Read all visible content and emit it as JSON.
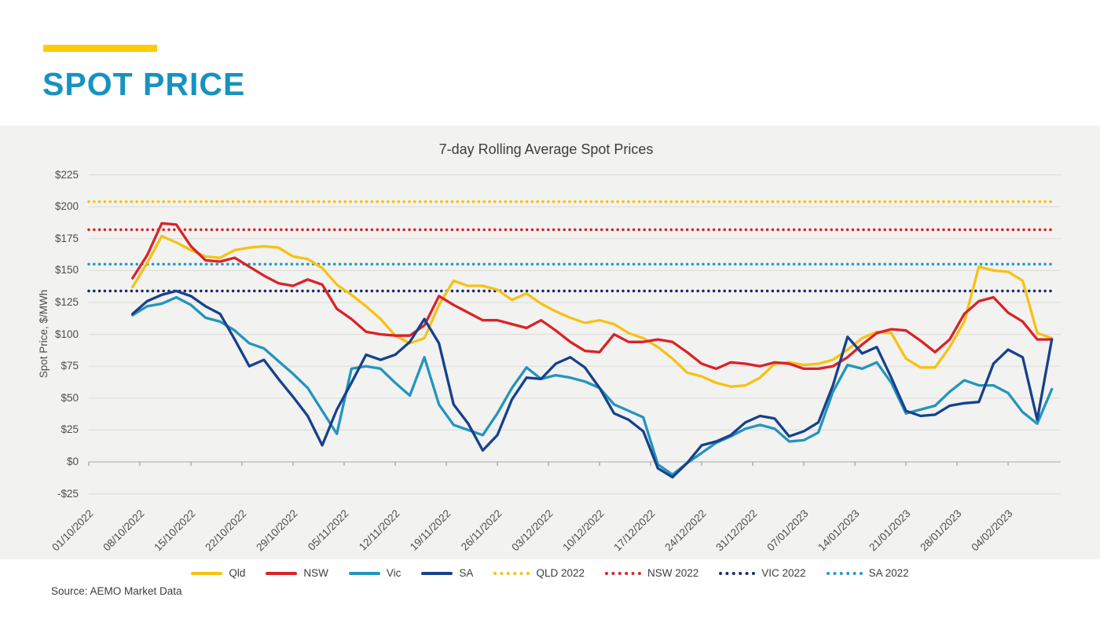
{
  "header": {
    "title": "SPOT PRICE"
  },
  "source": {
    "text": "Source: AEMO Market Data"
  },
  "colors": {
    "accent_bar": "#FFCB05",
    "header_title": "#1792C1",
    "plot_bg": "#F2F2F1",
    "grid": "#DDDDDC",
    "axis": "#BDBDBD",
    "tick": "#9E9E9E",
    "label_text": "#4D4D4D",
    "qld": "#F6C213",
    "nsw": "#D92329",
    "vic": "#2395BC",
    "sa": "#16418C",
    "qld_2022": "#F6C213",
    "nsw_2022": "#D92329",
    "vic_2022": "#1A2B6E",
    "sa_2022": "#1F9CCB"
  },
  "chart_data": {
    "type": "line",
    "title": "7-day Rolling Average Spot Prices",
    "xlabel": "",
    "ylabel": "Spot Price, $/MWh",
    "ylim": [
      -25,
      225
    ],
    "grid": "horizontal",
    "legend_position": "bottom",
    "y_tick_values": [
      225,
      200,
      175,
      150,
      125,
      100,
      75,
      50,
      25,
      0,
      -25
    ],
    "y_tick_labels": [
      "$225",
      "$200",
      "$175",
      "$150",
      "$125",
      "$100",
      "$75",
      "$50",
      "$25",
      "$0",
      "-$25"
    ],
    "x_tick_labels": [
      "01/10/2022",
      "08/10/2022",
      "15/10/2022",
      "22/10/2022",
      "29/10/2022",
      "05/11/2022",
      "12/11/2022",
      "19/11/2022",
      "26/11/2022",
      "03/12/2022",
      "10/12/2022",
      "17/12/2022",
      "24/12/2022",
      "31/12/2022",
      "07/01/2023",
      "14/01/2023",
      "21/01/2023",
      "28/01/2023",
      "04/02/2023"
    ],
    "x_tick_interval_days": 7,
    "series_start_day": 6,
    "series_step_days": 2,
    "series": [
      {
        "name": "Qld",
        "color_key": "qld",
        "values": [
          137,
          156,
          177,
          172,
          166,
          161,
          160,
          166,
          168,
          169,
          168,
          161,
          159,
          152,
          139,
          131,
          122,
          112,
          99,
          93,
          97,
          123,
          142,
          138,
          138,
          135,
          127,
          132,
          124,
          118,
          113,
          109,
          111,
          108,
          101,
          97,
          90,
          81,
          70,
          67,
          62,
          59,
          60,
          66,
          77,
          78,
          76,
          77,
          80,
          88,
          97,
          102,
          101,
          81,
          74,
          74,
          90,
          110,
          153,
          150,
          149,
          142,
          101,
          97
        ]
      },
      {
        "name": "NSW",
        "color_key": "nsw",
        "values": [
          144,
          162,
          187,
          186,
          169,
          158,
          157,
          160,
          153,
          146,
          140,
          138,
          143,
          139,
          120,
          112,
          102,
          100,
          99,
          99,
          107,
          130,
          123,
          117,
          111,
          111,
          108,
          105,
          111,
          103,
          94,
          87,
          86,
          100,
          94,
          94,
          96,
          94,
          86,
          77,
          73,
          78,
          77,
          75,
          78,
          77,
          73,
          73,
          75,
          82,
          92,
          101,
          104,
          103,
          95,
          86,
          96,
          116,
          126,
          129,
          117,
          110,
          96,
          96
        ]
      },
      {
        "name": "Vic",
        "color_key": "vic",
        "values": [
          115,
          122,
          124,
          129,
          123,
          113,
          110,
          103,
          93,
          89,
          79,
          69,
          58,
          40,
          22,
          73,
          75,
          73,
          62,
          52,
          82,
          45,
          29,
          25,
          21,
          38,
          58,
          74,
          65,
          68,
          66,
          63,
          58,
          45,
          40,
          35,
          -2,
          -10,
          -1,
          7,
          15,
          20,
          26,
          29,
          26,
          16,
          17,
          23,
          55,
          76,
          73,
          78,
          62,
          38,
          41,
          44,
          55,
          64,
          60,
          60,
          54,
          39,
          30,
          57
        ]
      },
      {
        "name": "SA",
        "color_key": "sa",
        "values": [
          116,
          126,
          131,
          134,
          130,
          122,
          116,
          96,
          75,
          80,
          65,
          51,
          36,
          13,
          41,
          62,
          84,
          80,
          84,
          94,
          112,
          93,
          45,
          30,
          9,
          21,
          49,
          66,
          65,
          77,
          82,
          74,
          58,
          38,
          33,
          24,
          -5,
          -12,
          -1,
          13,
          16,
          21,
          31,
          36,
          34,
          20,
          24,
          31,
          60,
          98,
          85,
          90,
          66,
          40,
          36,
          37,
          44,
          46,
          47,
          77,
          88,
          82,
          33,
          96
        ]
      }
    ],
    "reference_lines": [
      {
        "name": "QLD 2022",
        "value": 204,
        "color_key": "qld_2022"
      },
      {
        "name": "NSW 2022",
        "value": 182,
        "color_key": "nsw_2022"
      },
      {
        "name": "SA 2022",
        "value": 155,
        "color_key": "sa_2022"
      },
      {
        "name": "VIC 2022",
        "value": 134,
        "color_key": "vic_2022"
      }
    ]
  },
  "legend": {
    "items": [
      {
        "label": "Qld",
        "color_key": "qld",
        "style": "solid"
      },
      {
        "label": "NSW",
        "color_key": "nsw",
        "style": "solid"
      },
      {
        "label": "Vic",
        "color_key": "vic",
        "style": "solid"
      },
      {
        "label": "SA",
        "color_key": "sa",
        "style": "solid"
      },
      {
        "label": "QLD 2022",
        "color_key": "qld_2022",
        "style": "dotted"
      },
      {
        "label": "NSW 2022",
        "color_key": "nsw_2022",
        "style": "dotted"
      },
      {
        "label": "VIC 2022",
        "color_key": "vic_2022",
        "style": "dotted"
      },
      {
        "label": "SA 2022",
        "color_key": "sa_2022",
        "style": "dotted"
      }
    ]
  }
}
